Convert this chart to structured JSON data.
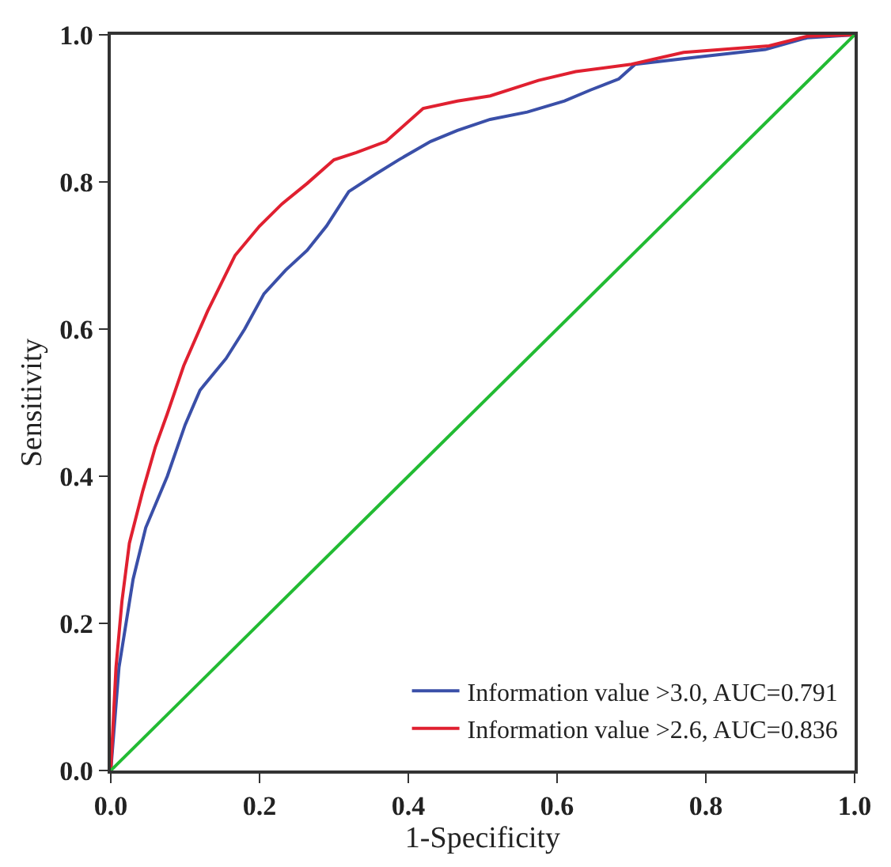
{
  "chart_data": {
    "type": "line",
    "xlabel": "1-Specificity",
    "ylabel": "Sensitivity",
    "xlim": [
      0,
      1
    ],
    "ylim": [
      0,
      1
    ],
    "xticks": [
      {
        "value": 0,
        "label": "0.0"
      },
      0.2,
      0.4,
      0.6,
      0.8,
      {
        "value": 1,
        "label": "1.0"
      }
    ],
    "yticks": [
      {
        "value": 0,
        "label": "0.0"
      },
      0.2,
      0.4,
      0.6,
      0.8,
      {
        "value": 1,
        "label": "1.0"
      }
    ],
    "legend": "bottom right",
    "marker": "none",
    "line_style": "solid",
    "series": [
      {
        "name": "Information value >3.0, AUC=0.791",
        "color": "#3a4fa8",
        "x": [
          0,
          0.011,
          0.03,
          0.047,
          0.076,
          0.1,
          0.12,
          0.155,
          0.18,
          0.206,
          0.235,
          0.264,
          0.29,
          0.32,
          0.355,
          0.387,
          0.43,
          0.466,
          0.51,
          0.56,
          0.61,
          0.645,
          0.683,
          0.705,
          0.79,
          0.88,
          0.936,
          1
        ],
        "values": [
          0,
          0.14,
          0.26,
          0.33,
          0.4,
          0.47,
          0.517,
          0.56,
          0.6,
          0.648,
          0.68,
          0.707,
          0.74,
          0.787,
          0.81,
          0.83,
          0.855,
          0.87,
          0.885,
          0.895,
          0.91,
          0.925,
          0.94,
          0.96,
          0.97,
          0.98,
          0.996,
          1
        ]
      },
      {
        "name": "Information value >2.6, AUC=0.836",
        "color": "#e02030",
        "x": [
          0,
          0.007,
          0.015,
          0.025,
          0.043,
          0.06,
          0.076,
          0.098,
          0.13,
          0.167,
          0.2,
          0.23,
          0.264,
          0.3,
          0.33,
          0.37,
          0.42,
          0.466,
          0.51,
          0.575,
          0.625,
          0.7,
          0.77,
          0.885,
          0.936,
          1
        ],
        "values": [
          0,
          0.14,
          0.23,
          0.309,
          0.38,
          0.44,
          0.485,
          0.55,
          0.624,
          0.7,
          0.74,
          0.77,
          0.798,
          0.83,
          0.84,
          0.855,
          0.9,
          0.91,
          0.917,
          0.938,
          0.95,
          0.96,
          0.976,
          0.985,
          0.998,
          1
        ]
      },
      {
        "color": "#22bb33",
        "x": [
          0,
          1
        ],
        "values": [
          0,
          1
        ]
      }
    ]
  }
}
